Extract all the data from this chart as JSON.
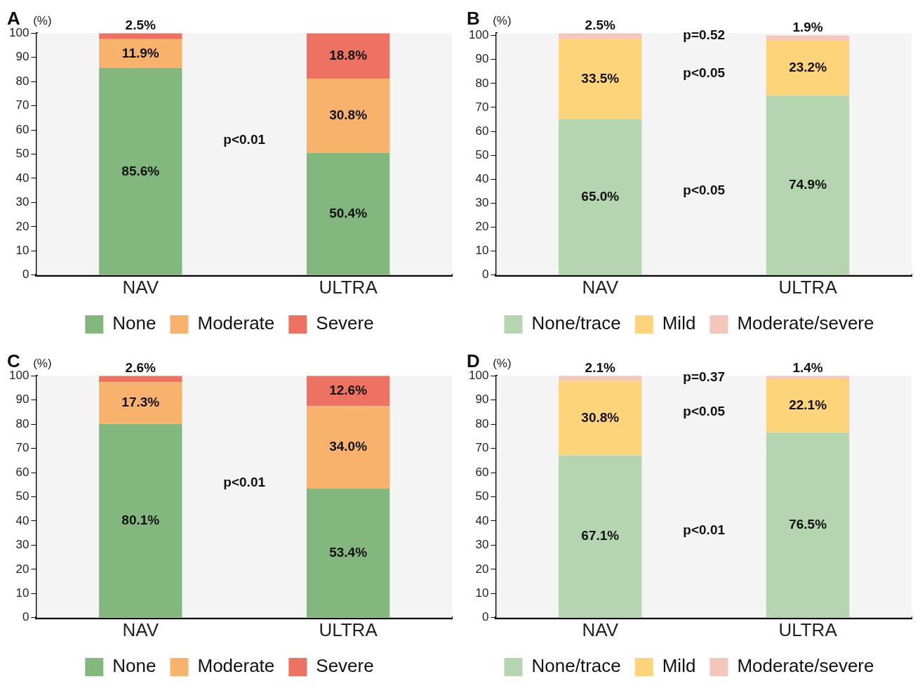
{
  "chart_data": [
    {
      "type": "bar",
      "title": "A",
      "ylabel": "(%)",
      "categories": [
        "NAV",
        "ULTRA"
      ],
      "stacked": true,
      "ylim": [
        0,
        100
      ],
      "yticks": [
        0,
        10,
        20,
        30,
        40,
        50,
        60,
        70,
        80,
        90,
        100
      ],
      "grid": false,
      "legend": "bottom",
      "series": [
        {
          "name": "None",
          "color": "#82b77e",
          "values": [
            85.6,
            50.4
          ],
          "value_labels": [
            "85.6%",
            "50.4%"
          ]
        },
        {
          "name": "Moderate",
          "color": "#f8b26b",
          "values": [
            11.9,
            30.8
          ],
          "value_labels": [
            "11.9%",
            "30.8%"
          ]
        },
        {
          "name": "Severe",
          "color": "#ee7262",
          "values": [
            2.5,
            18.8
          ],
          "value_labels": [
            "2.5%",
            "18.8%"
          ]
        }
      ],
      "annotations": [
        "p<0.01"
      ]
    },
    {
      "type": "bar",
      "title": "B",
      "ylabel": "(%)",
      "categories": [
        "NAV",
        "ULTRA"
      ],
      "stacked": true,
      "ylim": [
        0,
        101
      ],
      "yticks": [
        0,
        10,
        20,
        30,
        40,
        50,
        60,
        70,
        80,
        90,
        100
      ],
      "grid": false,
      "legend": "bottom",
      "series": [
        {
          "name": "None/trace",
          "color": "#b5d5b0",
          "values": [
            65.0,
            74.9
          ],
          "value_labels": [
            "65.0%",
            "74.9%"
          ]
        },
        {
          "name": "Mild",
          "color": "#fed47a",
          "values": [
            33.5,
            23.2
          ],
          "value_labels": [
            "33.5%",
            "23.2%"
          ]
        },
        {
          "name": "Moderate/severe",
          "color": "#f4c6bc",
          "values": [
            2.5,
            1.9
          ],
          "value_labels": [
            "2.5%",
            "1.9%"
          ]
        }
      ],
      "annotations": [
        "p=0.52",
        "p<0.05",
        "p<0.05"
      ]
    },
    {
      "type": "bar",
      "title": "C",
      "ylabel": "(%)",
      "categories": [
        "NAV",
        "ULTRA"
      ],
      "stacked": true,
      "ylim": [
        0,
        100
      ],
      "yticks": [
        0,
        10,
        20,
        30,
        40,
        50,
        60,
        70,
        80,
        90,
        100
      ],
      "grid": false,
      "legend": "bottom",
      "series": [
        {
          "name": "None",
          "color": "#82b77e",
          "values": [
            80.1,
            53.4
          ],
          "value_labels": [
            "80.1%",
            "53.4%"
          ]
        },
        {
          "name": "Moderate",
          "color": "#f8b26b",
          "values": [
            17.3,
            34.0
          ],
          "value_labels": [
            "17.3%",
            "34.0%"
          ]
        },
        {
          "name": "Severe",
          "color": "#ee7262",
          "values": [
            2.6,
            12.6
          ],
          "value_labels": [
            "2.6%",
            "12.6%"
          ]
        }
      ],
      "annotations": [
        "p<0.01"
      ]
    },
    {
      "type": "bar",
      "title": "D",
      "ylabel": "(%)",
      "categories": [
        "NAV",
        "ULTRA"
      ],
      "stacked": true,
      "ylim": [
        0,
        100
      ],
      "yticks": [
        0,
        10,
        20,
        30,
        40,
        50,
        60,
        70,
        80,
        90,
        100
      ],
      "grid": false,
      "legend": "bottom",
      "series": [
        {
          "name": "None/trace",
          "color": "#b5d5b0",
          "values": [
            67.1,
            76.5
          ],
          "value_labels": [
            "67.1%",
            "76.5%"
          ]
        },
        {
          "name": "Mild",
          "color": "#fed47a",
          "values": [
            30.8,
            22.1
          ],
          "value_labels": [
            "30.8%",
            "22.1%"
          ]
        },
        {
          "name": "Moderate/severe",
          "color": "#f4c6bc",
          "values": [
            2.1,
            1.4
          ],
          "value_labels": [
            "2.1%",
            "1.4%"
          ]
        }
      ],
      "annotations": [
        "p=0.37",
        "p<0.05",
        "p<0.01"
      ]
    }
  ]
}
